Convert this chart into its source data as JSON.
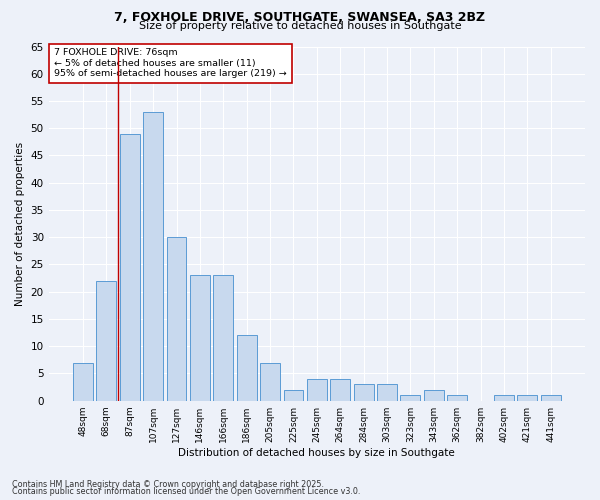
{
  "title1": "7, FOXHOLE DRIVE, SOUTHGATE, SWANSEA, SA3 2BZ",
  "title2": "Size of property relative to detached houses in Southgate",
  "xlabel": "Distribution of detached houses by size in Southgate",
  "ylabel": "Number of detached properties",
  "categories": [
    "48sqm",
    "68sqm",
    "87sqm",
    "107sqm",
    "127sqm",
    "146sqm",
    "166sqm",
    "186sqm",
    "205sqm",
    "225sqm",
    "245sqm",
    "264sqm",
    "284sqm",
    "303sqm",
    "323sqm",
    "343sqm",
    "362sqm",
    "382sqm",
    "402sqm",
    "421sqm",
    "441sqm"
  ],
  "values": [
    7,
    22,
    49,
    53,
    30,
    23,
    23,
    12,
    7,
    2,
    4,
    4,
    3,
    3,
    1,
    2,
    1,
    0,
    1,
    1,
    1
  ],
  "bar_color": "#c8d9ee",
  "bar_edge_color": "#5b9bd5",
  "vline_color": "#c00000",
  "annotation_text": "7 FOXHOLE DRIVE: 76sqm\n← 5% of detached houses are smaller (11)\n95% of semi-detached houses are larger (219) →",
  "annotation_box_color": "#ffffff",
  "annotation_box_edge": "#c00000",
  "ylim": [
    0,
    65
  ],
  "yticks": [
    0,
    5,
    10,
    15,
    20,
    25,
    30,
    35,
    40,
    45,
    50,
    55,
    60,
    65
  ],
  "background_color": "#edf1f9",
  "footnote1": "Contains HM Land Registry data © Crown copyright and database right 2025.",
  "footnote2": "Contains public sector information licensed under the Open Government Licence v3.0."
}
